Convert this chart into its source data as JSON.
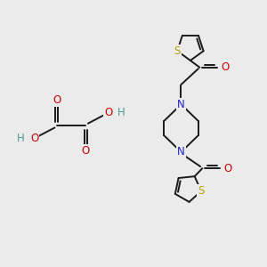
{
  "background_color": "#ebebeb",
  "bond_color": "#1a1a1a",
  "S_color": "#b8a000",
  "N_color": "#2020cc",
  "O_color": "#cc0000",
  "H_color": "#4d9999",
  "figsize": [
    3.0,
    3.0
  ],
  "dpi": 100,
  "xlim": [
    0,
    10
  ],
  "ylim": [
    0,
    10
  ]
}
